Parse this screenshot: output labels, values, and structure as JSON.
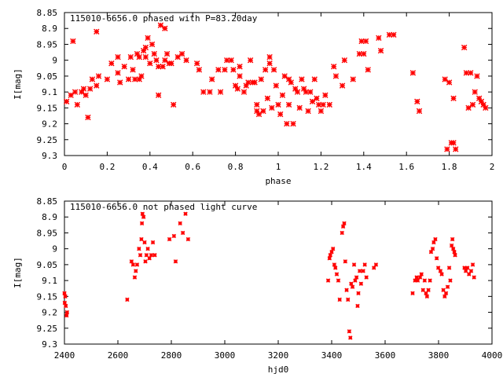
{
  "chart_data": [
    {
      "type": "scatter",
      "title": "115010-6656.0 phased with P=83.20day",
      "xlabel": "phase",
      "ylabel": "I[mag]",
      "xlim": [
        0,
        2
      ],
      "ylim": [
        9.3,
        8.85
      ],
      "y_inverted": true,
      "xticks": [
        0,
        0.2,
        0.4,
        0.6,
        0.8,
        1,
        1.2,
        1.4,
        1.6,
        1.8,
        2
      ],
      "xtick_labels": [
        "0",
        "0.2",
        "0.4",
        "0.6",
        "0.8",
        "1",
        "1.2",
        "1.4",
        "1.6",
        "1.8",
        "2"
      ],
      "yticks": [
        8.85,
        8.9,
        8.95,
        9,
        9.05,
        9.1,
        9.15,
        9.2,
        9.25,
        9.3
      ],
      "ytick_labels": [
        "8.85",
        "8.9",
        "8.95",
        "9",
        "9.05",
        "9.1",
        "9.15",
        "9.2",
        "9.25",
        "9.3"
      ],
      "grid": false,
      "marker_color": "#ff0000",
      "series": [
        {
          "points": [
            [
              0.01,
              9.13
            ],
            [
              0.03,
              9.11
            ],
            [
              0.04,
              8.94
            ],
            [
              0.05,
              9.1
            ],
            [
              0.06,
              9.14
            ],
            [
              0.08,
              9.1
            ],
            [
              0.09,
              9.09
            ],
            [
              0.1,
              9.11
            ],
            [
              0.11,
              9.18
            ],
            [
              0.12,
              9.09
            ],
            [
              0.13,
              9.06
            ],
            [
              0.15,
              9.08
            ],
            [
              0.15,
              8.91
            ],
            [
              0.16,
              9.05
            ],
            [
              0.2,
              9.06
            ],
            [
              0.22,
              9.01
            ],
            [
              0.25,
              8.99
            ],
            [
              0.25,
              9.04
            ],
            [
              0.26,
              9.07
            ],
            [
              0.28,
              9.02
            ],
            [
              0.3,
              9.06
            ],
            [
              0.31,
              8.99
            ],
            [
              0.32,
              9.03
            ],
            [
              0.33,
              9.06
            ],
            [
              0.34,
              8.98
            ],
            [
              0.35,
              9.06
            ],
            [
              0.35,
              8.99
            ],
            [
              0.36,
              9.05
            ],
            [
              0.37,
              8.97
            ],
            [
              0.38,
              8.96
            ],
            [
              0.38,
              8.99
            ],
            [
              0.39,
              8.93
            ],
            [
              0.4,
              9.01
            ],
            [
              0.41,
              8.95
            ],
            [
              0.42,
              8.98
            ],
            [
              0.43,
              9.0
            ],
            [
              0.44,
              9.11
            ],
            [
              0.44,
              9.02
            ],
            [
              0.45,
              8.89
            ],
            [
              0.46,
              9.02
            ],
            [
              0.47,
              8.9
            ],
            [
              0.47,
              9.0
            ],
            [
              0.48,
              8.98
            ],
            [
              0.49,
              9.01
            ],
            [
              0.5,
              9.01
            ],
            [
              0.51,
              9.14
            ],
            [
              0.53,
              8.99
            ],
            [
              0.55,
              8.98
            ],
            [
              0.57,
              9.0
            ],
            [
              0.62,
              9.01
            ],
            [
              0.63,
              9.03
            ],
            [
              0.65,
              9.1
            ],
            [
              0.68,
              9.1
            ],
            [
              0.69,
              9.06
            ],
            [
              0.72,
              9.03
            ],
            [
              0.73,
              9.1
            ],
            [
              0.75,
              9.03
            ],
            [
              0.76,
              9.0
            ],
            [
              0.78,
              9.0
            ],
            [
              0.79,
              9.03
            ],
            [
              0.8,
              9.08
            ],
            [
              0.81,
              9.09
            ],
            [
              0.82,
              9.05
            ],
            [
              0.82,
              9.02
            ],
            [
              0.84,
              9.1
            ],
            [
              0.85,
              9.08
            ],
            [
              0.86,
              9.07
            ],
            [
              0.87,
              9.0
            ],
            [
              0.88,
              9.07
            ],
            [
              0.89,
              9.07
            ],
            [
              0.9,
              9.14
            ],
            [
              0.9,
              9.16
            ],
            [
              0.91,
              9.17
            ],
            [
              0.92,
              9.06
            ],
            [
              0.93,
              9.16
            ],
            [
              0.94,
              9.03
            ],
            [
              0.95,
              9.12
            ],
            [
              0.96,
              8.99
            ],
            [
              0.96,
              9.01
            ],
            [
              0.97,
              9.15
            ],
            [
              0.98,
              9.03
            ],
            [
              0.99,
              9.08
            ],
            [
              1.0,
              9.14
            ],
            [
              1.01,
              9.17
            ],
            [
              1.02,
              9.11
            ],
            [
              1.03,
              9.05
            ],
            [
              1.04,
              9.2
            ],
            [
              1.05,
              9.06
            ],
            [
              1.05,
              9.14
            ],
            [
              1.06,
              9.07
            ],
            [
              1.07,
              9.2
            ],
            [
              1.08,
              9.09
            ],
            [
              1.09,
              9.1
            ],
            [
              1.1,
              9.15
            ],
            [
              1.11,
              9.06
            ],
            [
              1.12,
              9.09
            ],
            [
              1.13,
              9.1
            ],
            [
              1.14,
              9.16
            ],
            [
              1.15,
              9.1
            ],
            [
              1.16,
              9.13
            ],
            [
              1.17,
              9.06
            ],
            [
              1.18,
              9.12
            ],
            [
              1.19,
              9.14
            ],
            [
              1.2,
              9.16
            ],
            [
              1.21,
              9.14
            ],
            [
              1.22,
              9.11
            ],
            [
              1.24,
              9.14
            ],
            [
              1.26,
              9.02
            ],
            [
              1.27,
              9.05
            ],
            [
              1.3,
              9.08
            ],
            [
              1.31,
              9.0
            ],
            [
              1.35,
              9.06
            ],
            [
              1.38,
              8.98
            ],
            [
              1.39,
              8.94
            ],
            [
              1.4,
              8.98
            ],
            [
              1.41,
              8.94
            ],
            [
              1.42,
              9.03
            ],
            [
              1.47,
              8.93
            ],
            [
              1.48,
              8.97
            ],
            [
              1.52,
              8.92
            ],
            [
              1.54,
              8.92
            ],
            [
              1.63,
              9.04
            ],
            [
              1.65,
              9.13
            ],
            [
              1.66,
              9.16
            ],
            [
              1.78,
              9.06
            ],
            [
              1.79,
              9.28
            ],
            [
              1.8,
              9.07
            ],
            [
              1.81,
              9.26
            ],
            [
              1.82,
              9.26
            ],
            [
              1.82,
              9.12
            ],
            [
              1.83,
              9.28
            ],
            [
              1.87,
              8.96
            ],
            [
              1.88,
              9.04
            ],
            [
              1.89,
              9.15
            ],
            [
              1.9,
              9.04
            ],
            [
              1.91,
              9.14
            ],
            [
              1.92,
              9.1
            ],
            [
              1.93,
              9.05
            ],
            [
              1.94,
              9.12
            ],
            [
              1.95,
              9.13
            ],
            [
              1.96,
              9.14
            ],
            [
              1.97,
              9.15
            ]
          ]
        }
      ]
    },
    {
      "type": "scatter",
      "title": "115010-6656.0 not phased light curve",
      "xlabel": "hjd0",
      "ylabel": "I[mag]",
      "xlim": [
        2400,
        4000
      ],
      "ylim": [
        9.3,
        8.85
      ],
      "y_inverted": true,
      "xticks": [
        2400,
        2600,
        2800,
        3000,
        3200,
        3400,
        3600,
        3800,
        4000
      ],
      "xtick_labels": [
        "2400",
        "2600",
        "2800",
        "3000",
        "3200",
        "3400",
        "3600",
        "3800",
        "4000"
      ],
      "yticks": [
        8.85,
        8.9,
        8.95,
        9,
        9.05,
        9.1,
        9.15,
        9.2,
        9.25,
        9.3
      ],
      "ytick_labels": [
        "8.85",
        "8.9",
        "8.95",
        "9",
        "9.05",
        "9.1",
        "9.15",
        "9.2",
        "9.25",
        "9.3"
      ],
      "grid": false,
      "marker_color": "#ff0000",
      "series": [
        {
          "points": [
            [
              2400,
              9.14
            ],
            [
              2401,
              9.17
            ],
            [
              2403,
              9.15
            ],
            [
              2405,
              9.18
            ],
            [
              2408,
              9.21
            ],
            [
              2410,
              9.2
            ],
            [
              2635,
              9.16
            ],
            [
              2651,
              9.04
            ],
            [
              2657,
              9.05
            ],
            [
              2663,
              9.09
            ],
            [
              2667,
              9.07
            ],
            [
              2672,
              9.05
            ],
            [
              2679,
              9.0
            ],
            [
              2684,
              9.02
            ],
            [
              2688,
              8.97
            ],
            [
              2690,
              8.92
            ],
            [
              2692,
              8.89
            ],
            [
              2696,
              8.9
            ],
            [
              2700,
              8.98
            ],
            [
              2703,
              9.04
            ],
            [
              2707,
              9.02
            ],
            [
              2712,
              9.0
            ],
            [
              2718,
              9.03
            ],
            [
              2725,
              9.02
            ],
            [
              2731,
              8.98
            ],
            [
              2738,
              9.02
            ],
            [
              2793,
              8.97
            ],
            [
              2810,
              8.96
            ],
            [
              2816,
              9.04
            ],
            [
              2833,
              8.92
            ],
            [
              2843,
              8.95
            ],
            [
              2853,
              8.89
            ],
            [
              2863,
              8.97
            ],
            [
              3387,
              9.1
            ],
            [
              3392,
              9.03
            ],
            [
              3395,
              9.02
            ],
            [
              3400,
              9.01
            ],
            [
              3405,
              9.0
            ],
            [
              3410,
              9.05
            ],
            [
              3414,
              9.06
            ],
            [
              3419,
              9.08
            ],
            [
              3425,
              9.1
            ],
            [
              3430,
              9.16
            ],
            [
              3439,
              8.95
            ],
            [
              3443,
              8.93
            ],
            [
              3447,
              8.92
            ],
            [
              3451,
              9.04
            ],
            [
              3456,
              9.13
            ],
            [
              3461,
              9.16
            ],
            [
              3466,
              9.26
            ],
            [
              3470,
              9.28
            ],
            [
              3473,
              9.11
            ],
            [
              3478,
              9.12
            ],
            [
              3484,
              9.05
            ],
            [
              3488,
              9.1
            ],
            [
              3493,
              9.09
            ],
            [
              3497,
              9.18
            ],
            [
              3500,
              9.14
            ],
            [
              3505,
              9.07
            ],
            [
              3510,
              9.11
            ],
            [
              3518,
              9.07
            ],
            [
              3524,
              9.05
            ],
            [
              3530,
              9.09
            ],
            [
              3558,
              9.06
            ],
            [
              3566,
              9.05
            ],
            [
              3703,
              9.14
            ],
            [
              3712,
              9.1
            ],
            [
              3718,
              9.09
            ],
            [
              3722,
              9.1
            ],
            [
              3731,
              9.09
            ],
            [
              3736,
              9.08
            ],
            [
              3742,
              9.13
            ],
            [
              3748,
              9.1
            ],
            [
              3753,
              9.14
            ],
            [
              3757,
              9.15
            ],
            [
              3762,
              9.13
            ],
            [
              3768,
              9.1
            ],
            [
              3772,
              9.01
            ],
            [
              3778,
              9.0
            ],
            [
              3782,
              8.98
            ],
            [
              3788,
              8.97
            ],
            [
              3793,
              9.03
            ],
            [
              3799,
              9.06
            ],
            [
              3807,
              9.07
            ],
            [
              3812,
              9.08
            ],
            [
              3818,
              9.13
            ],
            [
              3823,
              9.15
            ],
            [
              3828,
              9.14
            ],
            [
              3834,
              9.12
            ],
            [
              3840,
              9.06
            ],
            [
              3844,
              9.1
            ],
            [
              3849,
              8.99
            ],
            [
              3852,
              8.97
            ],
            [
              3855,
              9.0
            ],
            [
              3859,
              9.01
            ],
            [
              3862,
              9.02
            ],
            [
              3897,
              9.06
            ],
            [
              3902,
              9.07
            ],
            [
              3908,
              9.06
            ],
            [
              3914,
              9.08
            ],
            [
              3922,
              9.07
            ],
            [
              3928,
              9.05
            ],
            [
              3933,
              9.09
            ]
          ]
        }
      ]
    }
  ]
}
